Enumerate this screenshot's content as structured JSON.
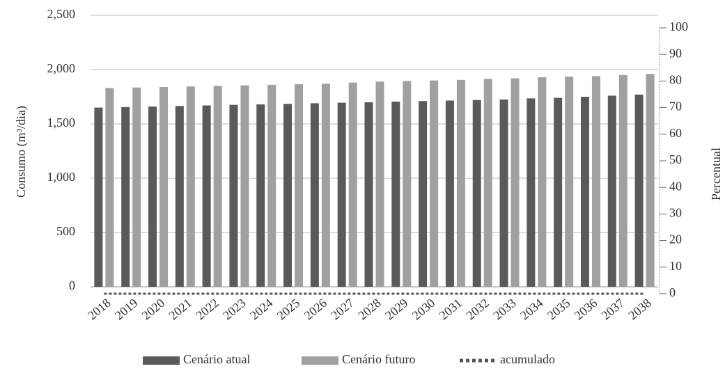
{
  "chart_data": {
    "type": "bar",
    "categories": [
      "2018",
      "2019",
      "2020",
      "2021",
      "2022",
      "2023",
      "2024",
      "2025",
      "2026",
      "2027",
      "2028",
      "2029",
      "2030",
      "2031",
      "2032",
      "2033",
      "2034",
      "2035",
      "2036",
      "2037",
      "2038"
    ],
    "series": [
      {
        "name": "Cenário atual",
        "color": "#5a5a5a",
        "values": [
          1650,
          1655,
          1660,
          1665,
          1670,
          1675,
          1680,
          1685,
          1690,
          1695,
          1700,
          1705,
          1710,
          1715,
          1720,
          1725,
          1735,
          1740,
          1750,
          1760,
          1770
        ]
      },
      {
        "name": "Cenário futuro",
        "color": "#a0a0a0",
        "values": [
          1830,
          1835,
          1840,
          1845,
          1850,
          1855,
          1860,
          1865,
          1870,
          1880,
          1890,
          1895,
          1900,
          1905,
          1915,
          1920,
          1930,
          1935,
          1940,
          1950,
          1960
        ]
      },
      {
        "name": "acumulado",
        "color": "#555555",
        "axis": "y2",
        "style": "dotted",
        "values": [
          0,
          0,
          0,
          0,
          0,
          0,
          0,
          0,
          0,
          0,
          0,
          0,
          0,
          0,
          0,
          0,
          0,
          0,
          0,
          0,
          0
        ]
      }
    ],
    "ylabel": "Consumo (m³/dia)",
    "y2label": "Percentual",
    "ylim": [
      0,
      2500
    ],
    "yticks": [
      0,
      {
        "value": 500,
        "label": "500"
      },
      {
        "value": 1000,
        "label": "1,000"
      },
      {
        "value": 1500,
        "label": "1,500"
      },
      {
        "value": 2000,
        "label": "2,000"
      },
      {
        "value": 2500,
        "label": "2,500"
      }
    ],
    "y2lim": [
      0,
      100
    ],
    "y2ticks": [
      0,
      10,
      20,
      30,
      40,
      50,
      60,
      70,
      80,
      90,
      100
    ],
    "grid": true,
    "legend": "bottom"
  }
}
